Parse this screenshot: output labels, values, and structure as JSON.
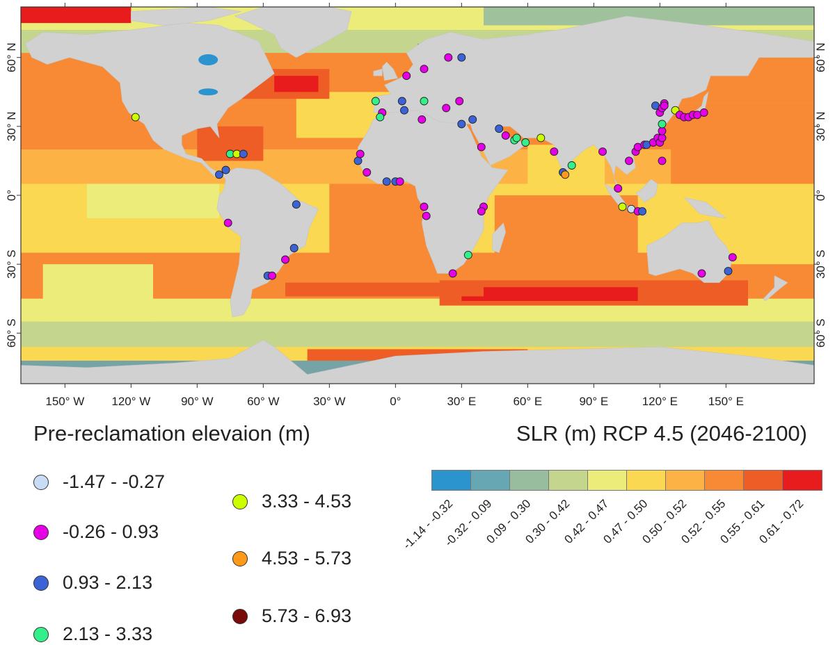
{
  "map": {
    "lon_labels": [
      "150° W",
      "120° W",
      "90° W",
      "60° W",
      "30° W",
      "0°",
      "30° E",
      "60° E",
      "90° E",
      "120° E",
      "150° E"
    ],
    "lat_labels": [
      "60° N",
      "30° N",
      "0°",
      "30° S",
      "60° S"
    ]
  },
  "legend_elevation": {
    "title": "Pre-reclamation elevaion (m)",
    "items": [
      {
        "label": "-1.47 - -0.27",
        "color": "#c9dcf5"
      },
      {
        "label": "-0.26 - 0.93",
        "color": "#e600e6"
      },
      {
        "label": "0.93 - 2.13",
        "color": "#3b63d6"
      },
      {
        "label": "2.13 - 3.33",
        "color": "#33f08a"
      },
      {
        "label": "3.33 - 4.53",
        "color": "#ccff00"
      },
      {
        "label": "4.53 - 5.73",
        "color": "#ff9919"
      },
      {
        "label": "5.73 - 6.93",
        "color": "#7a0a0a"
      }
    ]
  },
  "legend_slr": {
    "title": "SLR (m) RCP 4.5 (2046-2100)",
    "bins": [
      {
        "label": "-1.14 - -0.32",
        "color": "#2b94cf"
      },
      {
        "label": "-0.32 - 0.09",
        "color": "#67a6b3"
      },
      {
        "label": "0.09 - 0.30",
        "color": "#97bd9e"
      },
      {
        "label": "0.30 - 0.42",
        "color": "#c4d68e"
      },
      {
        "label": "0.42 - 0.47",
        "color": "#ecec7a"
      },
      {
        "label": "0.47 - 0.50",
        "color": "#fbd852"
      },
      {
        "label": "0.50 - 0.52",
        "color": "#fcb244"
      },
      {
        "label": "0.52 - 0.55",
        "color": "#f88a35"
      },
      {
        "label": "0.55 - 0.61",
        "color": "#ee5d25"
      },
      {
        "label": "0.61 - 0.72",
        "color": "#e81c1c"
      }
    ]
  },
  "sites": [
    {
      "lon": -118,
      "lat": 34,
      "cls": 4
    },
    {
      "lon": -80,
      "lat": 9,
      "cls": 2
    },
    {
      "lon": -77,
      "lat": 11,
      "cls": 2
    },
    {
      "lon": -75,
      "lat": 18,
      "cls": 3
    },
    {
      "lon": -72,
      "lat": 18,
      "cls": 4
    },
    {
      "lon": -69,
      "lat": 18,
      "cls": 2
    },
    {
      "lon": -76,
      "lat": -12,
      "cls": 1
    },
    {
      "lon": -45,
      "lat": -4,
      "cls": 2
    },
    {
      "lon": -46,
      "lat": -23,
      "cls": 2
    },
    {
      "lon": -50,
      "lat": -28,
      "cls": 1
    },
    {
      "lon": -58,
      "lat": -35,
      "cls": 2
    },
    {
      "lon": -56,
      "lat": -35,
      "cls": 1
    },
    {
      "lon": -17,
      "lat": 15,
      "cls": 2
    },
    {
      "lon": -16,
      "lat": 18,
      "cls": 1
    },
    {
      "lon": -13,
      "lat": 10,
      "cls": 1
    },
    {
      "lon": -4,
      "lat": 6,
      "cls": 2
    },
    {
      "lon": 0,
      "lat": 6,
      "cls": 2
    },
    {
      "lon": 2,
      "lat": 6,
      "cls": 1
    },
    {
      "lon": 13,
      "lat": -5,
      "cls": 1
    },
    {
      "lon": 14,
      "lat": -9,
      "cls": 1
    },
    {
      "lon": 40,
      "lat": -5,
      "cls": 1
    },
    {
      "lon": 39,
      "lat": -7,
      "cls": 1
    },
    {
      "lon": 33,
      "lat": -26,
      "cls": 3
    },
    {
      "lon": 26,
      "lat": -34,
      "cls": 1
    },
    {
      "lon": -9,
      "lat": 41,
      "cls": 3
    },
    {
      "lon": -6,
      "lat": 36,
      "cls": 1
    },
    {
      "lon": -7,
      "lat": 34,
      "cls": 3
    },
    {
      "lon": 3,
      "lat": 41,
      "cls": 2
    },
    {
      "lon": 4,
      "lat": 37,
      "cls": 2
    },
    {
      "lon": 13,
      "lat": 41,
      "cls": 3
    },
    {
      "lon": 12,
      "lat": 33,
      "cls": 1
    },
    {
      "lon": 23,
      "lat": 38,
      "cls": 1
    },
    {
      "lon": 29,
      "lat": 41,
      "cls": 1
    },
    {
      "lon": 30,
      "lat": 31,
      "cls": 2
    },
    {
      "lon": 35,
      "lat": 33,
      "cls": 2
    },
    {
      "lon": 5,
      "lat": 52,
      "cls": 1
    },
    {
      "lon": 13,
      "lat": 55,
      "cls": 1
    },
    {
      "lon": 24,
      "lat": 60,
      "cls": 1
    },
    {
      "lon": 30,
      "lat": 60,
      "cls": 2
    },
    {
      "lon": 39,
      "lat": 21,
      "cls": 1
    },
    {
      "lon": 47,
      "lat": 29,
      "cls": 2
    },
    {
      "lon": 50,
      "lat": 26,
      "cls": 1
    },
    {
      "lon": 54,
      "lat": 24,
      "cls": 3
    },
    {
      "lon": 55,
      "lat": 25,
      "cls": 3
    },
    {
      "lon": 59,
      "lat": 23,
      "cls": 3
    },
    {
      "lon": 66,
      "lat": 25,
      "cls": 4
    },
    {
      "lon": 72,
      "lat": 19,
      "cls": 1
    },
    {
      "lon": 80,
      "lat": 13,
      "cls": 3
    },
    {
      "lon": 76,
      "lat": 10,
      "cls": 2
    },
    {
      "lon": 77,
      "lat": 9,
      "cls": 5
    },
    {
      "lon": 94,
      "lat": 19,
      "cls": 1
    },
    {
      "lon": 101,
      "lat": 3,
      "cls": 1
    },
    {
      "lon": 103,
      "lat": -5,
      "cls": 4
    },
    {
      "lon": 107,
      "lat": -6,
      "cls": 0
    },
    {
      "lon": 110,
      "lat": -7,
      "cls": 1
    },
    {
      "lon": 112,
      "lat": -7,
      "cls": 2
    },
    {
      "lon": 106,
      "lat": 15,
      "cls": 1
    },
    {
      "lon": 109,
      "lat": 19,
      "cls": 1
    },
    {
      "lon": 110,
      "lat": 21,
      "cls": 1
    },
    {
      "lon": 113,
      "lat": 22,
      "cls": 1
    },
    {
      "lon": 114,
      "lat": 22,
      "cls": 2
    },
    {
      "lon": 117,
      "lat": 23,
      "cls": 1
    },
    {
      "lon": 119,
      "lat": 25,
      "cls": 1
    },
    {
      "lon": 120,
      "lat": 23,
      "cls": 1
    },
    {
      "lon": 121,
      "lat": 25,
      "cls": 1
    },
    {
      "lon": 121,
      "lat": 28,
      "cls": 1
    },
    {
      "lon": 121,
      "lat": 31,
      "cls": 3
    },
    {
      "lon": 121,
      "lat": 15,
      "cls": 1
    },
    {
      "lon": 118,
      "lat": 39,
      "cls": 2
    },
    {
      "lon": 120,
      "lat": 36,
      "cls": 1
    },
    {
      "lon": 121,
      "lat": 38,
      "cls": 1
    },
    {
      "lon": 122,
      "lat": 40,
      "cls": 1
    },
    {
      "lon": 122,
      "lat": 39,
      "cls": 1
    },
    {
      "lon": 127,
      "lat": 37,
      "cls": 4
    },
    {
      "lon": 129,
      "lat": 35,
      "cls": 1
    },
    {
      "lon": 131,
      "lat": 34,
      "cls": 1
    },
    {
      "lon": 133,
      "lat": 34,
      "cls": 1
    },
    {
      "lon": 135,
      "lat": 35,
      "cls": 1
    },
    {
      "lon": 137,
      "lat": 35,
      "cls": 1
    },
    {
      "lon": 140,
      "lat": 36,
      "cls": 1
    },
    {
      "lon": 139,
      "lat": -34,
      "cls": 1
    },
    {
      "lon": 151,
      "lat": -33,
      "cls": 2
    },
    {
      "lon": 153,
      "lat": -27,
      "cls": 1
    }
  ]
}
